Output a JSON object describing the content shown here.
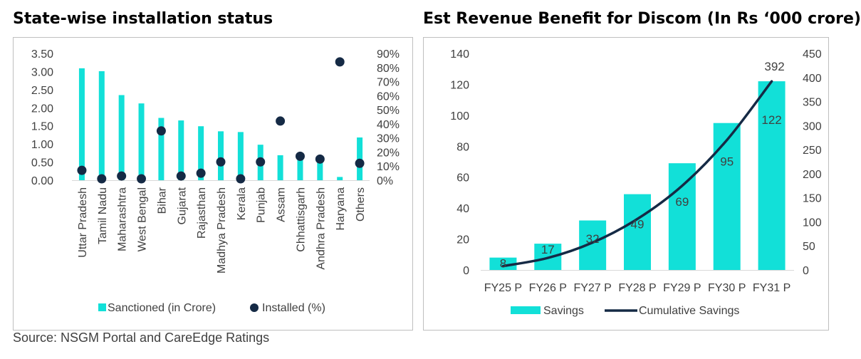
{
  "left": {
    "title": "State-wise installation status",
    "chart_data": {
      "type": "bar",
      "categories": [
        "Uttar Pradesh",
        "Tamil Nadu",
        "Maharashtra",
        "West Bengal",
        "Bihar",
        "Gujarat",
        "Rajasthan",
        "Madhya Pradesh",
        "Kerala",
        "Punjab",
        "Assam",
        "Chhattisgarh",
        "Andhra Pradesh",
        "Haryana",
        "Others"
      ],
      "series": [
        {
          "name": "Sanctioned (in Crore)",
          "type": "bar",
          "axis": "left",
          "values": [
            3.09,
            3.01,
            2.35,
            2.12,
            1.72,
            1.65,
            1.49,
            1.35,
            1.33,
            0.98,
            0.69,
            0.62,
            0.55,
            0.09,
            1.18
          ]
        },
        {
          "name": "Installed (%)",
          "type": "scatter",
          "axis": "right",
          "values": [
            7,
            1,
            3,
            1,
            35,
            3,
            5,
            13,
            1,
            13,
            42,
            17,
            15,
            84,
            12
          ]
        }
      ],
      "y_left": {
        "ylim": [
          0,
          3.5
        ],
        "ticks": [
          "0.00",
          "0.50",
          "1.00",
          "1.50",
          "2.00",
          "2.50",
          "3.00",
          "3.50"
        ]
      },
      "y_right": {
        "ylim": [
          0,
          90
        ],
        "ticks": [
          "0%",
          "10%",
          "20%",
          "30%",
          "40%",
          "50%",
          "60%",
          "70%",
          "80%",
          "90%"
        ]
      },
      "legend": {
        "position": "bottom",
        "labels": [
          "Sanctioned (in Crore)",
          "Installed (%)"
        ]
      },
      "colors": {
        "bar": "#12e0d8",
        "dot": "#152a45"
      }
    }
  },
  "right": {
    "title": "Est Revenue Benefit for Discom (In Rs ‘000 crore)",
    "chart_data": {
      "type": "bar",
      "categories": [
        "FY25 P",
        "FY26 P",
        "FY27 P",
        "FY28 P",
        "FY29 P",
        "FY30 P",
        "FY31 P"
      ],
      "series": [
        {
          "name": "Savings",
          "type": "bar",
          "axis": "left",
          "values": [
            8,
            17,
            32,
            49,
            69,
            95,
            122
          ],
          "labels": [
            "8",
            "17",
            "32",
            "49",
            "69",
            "95",
            "122"
          ]
        },
        {
          "name": "Cumulative Savings",
          "type": "line",
          "axis": "right",
          "values": [
            8,
            25,
            57,
            106,
            175,
            270,
            392
          ]
        }
      ],
      "y_left": {
        "ylim": [
          0,
          140
        ],
        "ticks": [
          "0",
          "20",
          "40",
          "60",
          "80",
          "100",
          "120",
          "140"
        ]
      },
      "y_right": {
        "ylim": [
          0,
          450
        ],
        "ticks": [
          "0",
          "50",
          "100",
          "150",
          "200",
          "250",
          "300",
          "350",
          "400",
          "450"
        ]
      },
      "annotation": "392",
      "legend": {
        "position": "bottom",
        "labels": [
          "Savings",
          "Cumulative Savings"
        ]
      },
      "colors": {
        "bar": "#12e0d8",
        "line": "#152a45"
      }
    }
  },
  "source": "Source: NSGM Portal and CareEdge Ratings"
}
